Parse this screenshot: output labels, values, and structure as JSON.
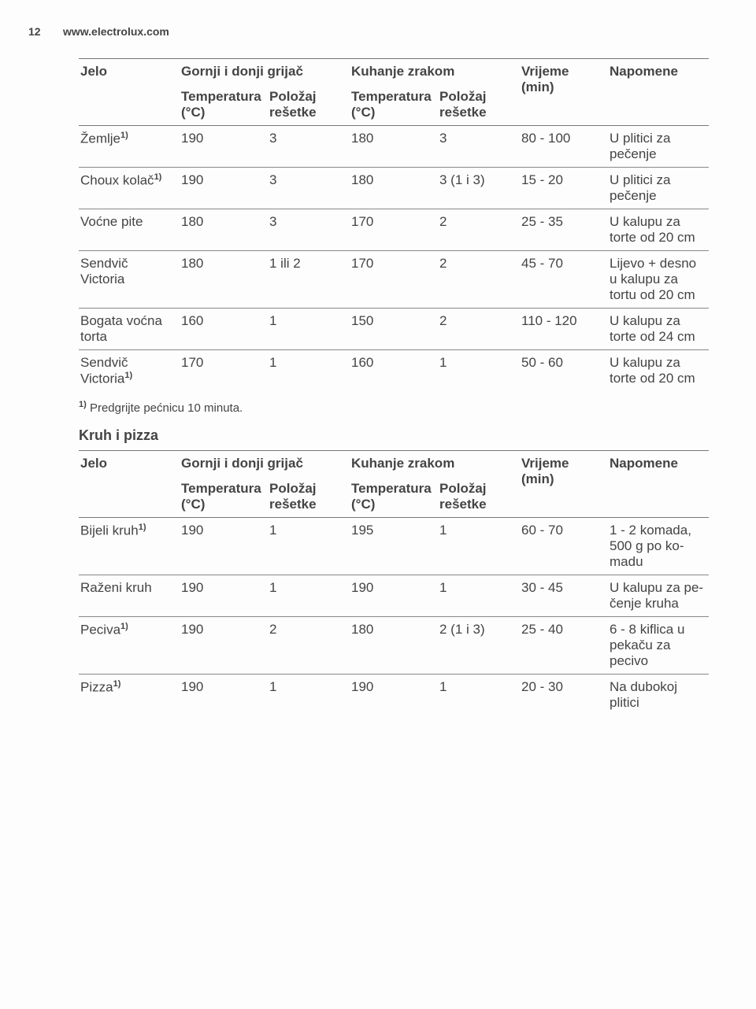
{
  "page": {
    "number": "12",
    "site": "www.electrolux.com"
  },
  "t1": {
    "head": {
      "jelo": "Jelo",
      "gornji": "Gornji i donji grijač",
      "kuhanje": "Kuhanje zrakom",
      "vrijeme": "Vrijeme (min)",
      "napo": "Napo­mene",
      "temp": "Tempera­tura (°C)",
      "pol": "Položaj rešetke"
    },
    "rows": [
      {
        "jelo": "Žemlje",
        "sup": "1)",
        "t1": "190",
        "p1": "3",
        "t2": "180",
        "p2": "3",
        "vr": "80 - 100",
        "nap": "U plitici za pečenje"
      },
      {
        "jelo": "Choux ko­lač",
        "sup": "1)",
        "t1": "190",
        "p1": "3",
        "t2": "180",
        "p2": "3 (1 i 3)",
        "vr": "15 - 20",
        "nap": "U plitici za pečenje"
      },
      {
        "jelo": "Voćne pite",
        "sup": "",
        "t1": "180",
        "p1": "3",
        "t2": "170",
        "p2": "2",
        "vr": "25 - 35",
        "nap": "U kalupu za torte od 20 cm"
      },
      {
        "jelo": "Sendvič Victoria",
        "sup": "",
        "t1": "180",
        "p1": "1 ili 2",
        "t2": "170",
        "p2": "2",
        "vr": "45 - 70",
        "nap": "Lijevo + desno u kalupu za tortu od 20 cm"
      },
      {
        "jelo": "Bogata voćna tor­ta",
        "sup": "",
        "t1": "160",
        "p1": "1",
        "t2": "150",
        "p2": "2",
        "vr": "110 - 120",
        "nap": "U kalupu za torte od 24 cm"
      },
      {
        "jelo": "Sendvič Victoria",
        "sup": "1)",
        "t1": "170",
        "p1": "1",
        "t2": "160",
        "p2": "1",
        "vr": "50 - 60",
        "nap": "U kalupu za torte od 20 cm"
      }
    ],
    "footnote": " Predgrijte pećnicu 10 minuta.",
    "footnote_sup": "1)"
  },
  "section2_title": "Kruh i pizza",
  "t2": {
    "head": {
      "jelo": "Jelo",
      "gornji": "Gornji i donji grijač",
      "kuhanje": "Kuhanje zrakom",
      "vrijeme": "Vrijeme (min)",
      "napo": "Napo­mene",
      "temp": "Tempera­tura (°C)",
      "pol": "Položaj rešetke"
    },
    "rows": [
      {
        "jelo": "Bijeli kruh",
        "sup": "1)",
        "t1": "190",
        "p1": "1",
        "t2": "195",
        "p2": "1",
        "vr": "60 - 70",
        "nap": "1 - 2 ko­mada, 500 g po ko­madu"
      },
      {
        "jelo": "Raženi kruh",
        "sup": "",
        "t1": "190",
        "p1": "1",
        "t2": "190",
        "p2": "1",
        "vr": "30 - 45",
        "nap": "U kalupu za pe­čenje kru­ha"
      },
      {
        "jelo": "Peciva",
        "sup": "1)",
        "t1": "190",
        "p1": "2",
        "t2": "180",
        "p2": "2 (1 i 3)",
        "vr": "25 - 40",
        "nap": "6 - 8 kiflica u pekaču za pecivo"
      },
      {
        "jelo": "Pizza",
        "sup": "1)",
        "t1": "190",
        "p1": "1",
        "t2": "190",
        "p2": "1",
        "vr": "20 - 30",
        "nap": "Na dubo­koj plitici"
      }
    ]
  }
}
